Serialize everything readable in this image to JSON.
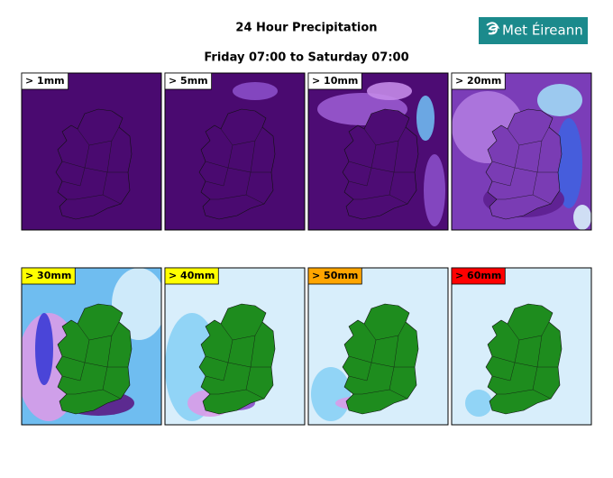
{
  "header": {
    "title": "24 Hour Precipitation",
    "subtitle": "Friday 07:00 to Saturday 07:00",
    "logo": "Met Éireann"
  },
  "panels": [
    {
      "label": "> 1mm",
      "label_color": "#ffffff"
    },
    {
      "label": "> 5mm",
      "label_color": "#ffffff"
    },
    {
      "label": "> 10mm",
      "label_color": "#ffffff"
    },
    {
      "label": "> 20mm",
      "label_color": "#ffffff"
    },
    {
      "label": "> 30mm",
      "label_color": "#ffff00"
    },
    {
      "label": "> 40mm",
      "label_color": "#ffff00"
    },
    {
      "label": "> 50mm",
      "label_color": "#ffa500"
    },
    {
      "label": "> 60mm",
      "label_color": "#ff0000"
    }
  ]
}
